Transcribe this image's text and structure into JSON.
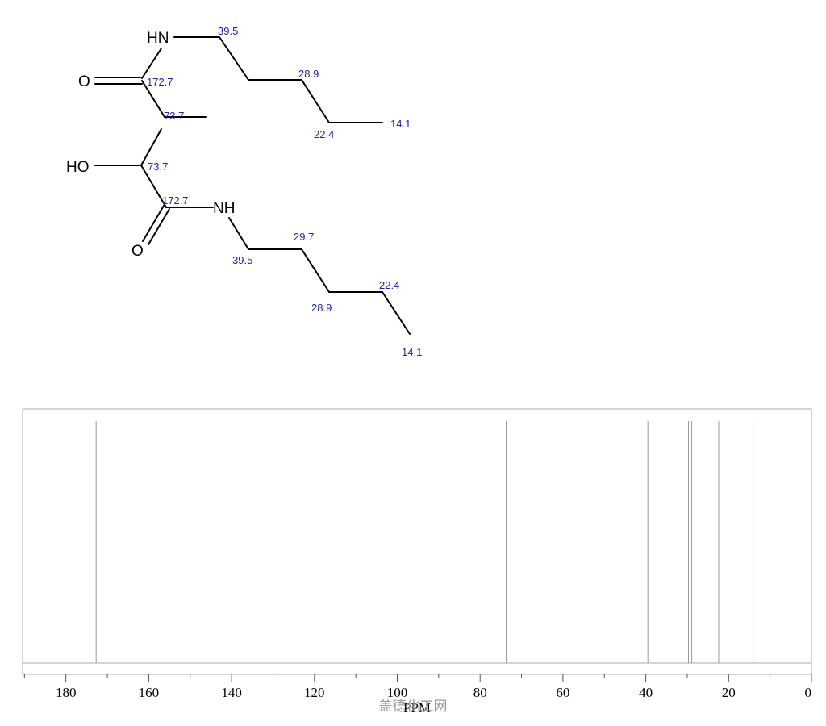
{
  "molecule": {
    "atoms": {
      "hn_top": "HN",
      "o_top": "O",
      "ho": "HO",
      "nh_bottom": "NH",
      "o_bottom": "O"
    },
    "shift_labels": {
      "s1": "39.5",
      "s2": "172.7",
      "s3": "73.7",
      "s4": "28.9",
      "s5": "22.4",
      "s6": "14.1",
      "s7": "73.7",
      "s8": "172.7",
      "s9": "29.7",
      "s10": "39.5",
      "s11": "22.4",
      "s12": "28.9",
      "s13": "14.1"
    }
  },
  "chart_data": {
    "type": "nmr-stick-spectrum",
    "xlabel": "PPM",
    "xlim": [
      190,
      0
    ],
    "x_reversed": true,
    "ticks": [
      180,
      160,
      140,
      120,
      100,
      80,
      60,
      40,
      20,
      0
    ],
    "tick_labels": [
      "180",
      "160",
      "140",
      "120",
      "100",
      "80",
      "60",
      "40",
      "20",
      "0"
    ],
    "peaks": [
      172.7,
      73.7,
      39.5,
      29.7,
      28.9,
      22.4,
      14.1
    ],
    "peak_heights": [
      1,
      1,
      1,
      1,
      1,
      1,
      1
    ],
    "colors": {
      "peak": "#999999",
      "frame": "#aaaaaa",
      "axis": "#555555"
    }
  },
  "watermark": "盖德化工网"
}
